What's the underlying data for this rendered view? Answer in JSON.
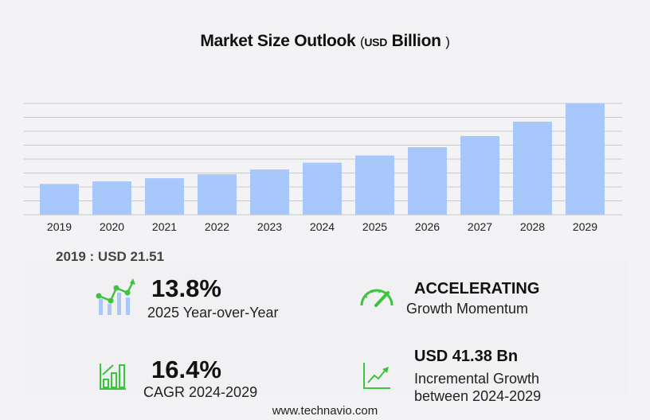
{
  "title": {
    "main": "Market Size Outlook",
    "open": "(",
    "unit": "USD",
    "unit_word": "Billion",
    "close": ")"
  },
  "chart_data": {
    "type": "bar",
    "categories": [
      "2019",
      "2020",
      "2021",
      "2022",
      "2023",
      "2024",
      "2025",
      "2026",
      "2027",
      "2028",
      "2029"
    ],
    "values": [
      21.51,
      23.3,
      25.5,
      28.3,
      31.6,
      36.36,
      41.38,
      47.2,
      55.0,
      65.0,
      77.74
    ],
    "ylim": [
      0,
      77.74
    ],
    "grid": true,
    "bar_color": "#a8c8fc",
    "title": "Market Size Outlook (USD Billion)"
  },
  "base": {
    "text": "2019 : USD  21.51"
  },
  "stats": {
    "yoy": {
      "value": "13.8%",
      "label": "2025 Year-over-Year",
      "icon": "chart-growth-icon"
    },
    "momentum": {
      "value": "ACCELERATING",
      "label": "Growth Momentum",
      "icon": "speedometer-icon"
    },
    "cagr": {
      "value": "16.4%",
      "label": "CAGR 2024-2029",
      "icon": "bar-chart-arrow-icon"
    },
    "incremental": {
      "value": "USD 41.38 Bn",
      "label1": "Incremental Growth",
      "label2": "between 2024-2029",
      "icon": "line-chart-up-icon"
    }
  },
  "accent": "#3cc43c",
  "footer": "www.technavio.com"
}
